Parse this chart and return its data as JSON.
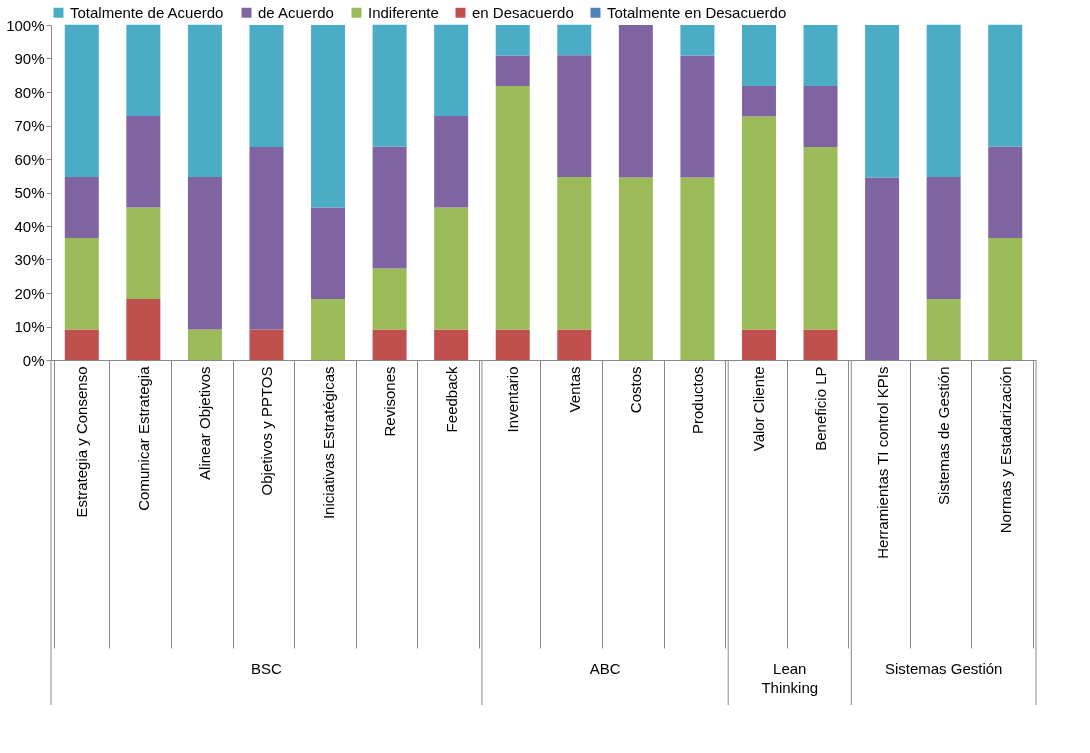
{
  "chart_data": {
    "type": "bar",
    "stacked": true,
    "categories": [
      "Estrategia y Consenso",
      "Comunicar Estrategia",
      "Alinear Objetivos",
      "Objetivos y PPTOS",
      "Iniciativas Estratégicas",
      "Revisones",
      "Feedback",
      "Inventario",
      "Ventas",
      "Costos",
      "Productos",
      "Valor Cliente",
      "Beneficio LP",
      "Herramientas TI control KPIs",
      "Sistemas de Gestión",
      "Normas y Estadarización"
    ],
    "series": [
      {
        "name": "Totalmente en Desacuerdo",
        "color": "#4f81bd",
        "values": [
          0,
          0,
          0,
          0,
          0,
          0,
          0,
          0,
          0,
          0,
          0,
          0,
          0,
          0,
          0,
          0
        ]
      },
      {
        "name": "en Desacuerdo",
        "color": "#c0504d",
        "values": [
          9.1,
          18.2,
          0,
          9.1,
          0,
          9.1,
          9.1,
          9.1,
          9.1,
          0,
          0,
          9.1,
          9.1,
          0,
          0,
          0
        ]
      },
      {
        "name": "Indiferente",
        "color": "#9bbb59",
        "values": [
          27.3,
          27.3,
          9.1,
          0,
          18.2,
          18.2,
          36.4,
          72.7,
          45.5,
          54.5,
          54.5,
          63.6,
          54.5,
          0,
          18.2,
          36.4
        ]
      },
      {
        "name": "de Acuerdo",
        "color": "#8064a2",
        "values": [
          18.2,
          27.3,
          45.5,
          54.5,
          27.3,
          36.4,
          27.3,
          9.1,
          36.4,
          45.5,
          36.4,
          9.1,
          18.2,
          54.5,
          36.4,
          27.3
        ]
      },
      {
        "name": "Totalmente de Acuerdo",
        "color": "#4bacc6",
        "values": [
          45.5,
          27.3,
          45.5,
          36.4,
          54.5,
          36.4,
          27.3,
          9.1,
          9.1,
          0,
          9.1,
          18.2,
          18.2,
          45.5,
          45.5,
          36.4
        ]
      }
    ],
    "ylim": [
      0,
      100
    ],
    "yticks": [
      {
        "value": 0,
        "label": "0%"
      },
      {
        "value": 10,
        "label": "10%"
      },
      {
        "value": 20,
        "label": "20%"
      },
      {
        "value": 30,
        "label": "30%"
      },
      {
        "value": 40,
        "label": "40%"
      },
      {
        "value": 50,
        "label": "50%"
      },
      {
        "value": 60,
        "label": "60%"
      },
      {
        "value": 70,
        "label": "70%"
      },
      {
        "value": 80,
        "label": "80%"
      },
      {
        "value": 90,
        "label": "90%"
      },
      {
        "value": 100,
        "label": "100%"
      }
    ],
    "annotations": [
      "BSC",
      "ABC",
      "Lean Thinking",
      "Sistemas Gestión"
    ],
    "legend": "top",
    "grid": false
  }
}
